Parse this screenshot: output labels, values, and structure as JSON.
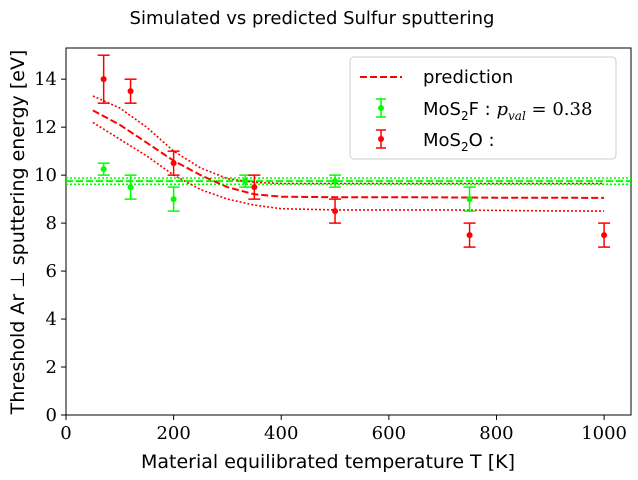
{
  "chart_data": {
    "type": "scatter",
    "title": "Simulated vs predicted Sulfur sputtering",
    "xlabel": "Material equilibrated temperature T [K]",
    "ylabel": "Threshold Ar ⊥ sputtering energy [eV]",
    "xlim": [
      0,
      1050
    ],
    "ylim": [
      0,
      15.3
    ],
    "xticks": [
      0,
      200,
      400,
      600,
      800,
      1000
    ],
    "yticks": [
      0,
      2,
      4,
      6,
      8,
      10,
      12,
      14
    ],
    "grid": false,
    "legend_position": "top-right",
    "legend": {
      "prediction": "prediction",
      "series1_main": "MoS",
      "series1_sub": "2",
      "series1_tail": "F : ",
      "series1_pval": "p",
      "series1_pval_sub": "val",
      "series1_pval_tail": " = 0.38",
      "series2_main": "MoS",
      "series2_sub": "2",
      "series2_tail": "O :"
    },
    "series": [
      {
        "name": "MoS2F",
        "color": "#00ff00",
        "points": [
          {
            "x": 70,
            "y": 10.25,
            "err": 0.25
          },
          {
            "x": 120,
            "y": 9.5,
            "err": 0.5
          },
          {
            "x": 200,
            "y": 9.0,
            "err": 0.5
          },
          {
            "x": 333,
            "y": 9.75,
            "err": 0.25
          },
          {
            "x": 500,
            "y": 9.75,
            "err": 0.25
          },
          {
            "x": 750,
            "y": 9.0,
            "err": 0.5
          }
        ],
        "fit_mean": 9.75,
        "fit_band": [
          9.62,
          9.88
        ]
      },
      {
        "name": "MoS2O",
        "color": "#ff0000",
        "points": [
          {
            "x": 70,
            "y": 14.0,
            "err": 1.0
          },
          {
            "x": 120,
            "y": 13.5,
            "err": 0.5
          },
          {
            "x": 200,
            "y": 10.5,
            "err": 0.5
          },
          {
            "x": 350,
            "y": 9.5,
            "err": 0.5
          },
          {
            "x": 500,
            "y": 8.5,
            "err": 0.5
          },
          {
            "x": 750,
            "y": 7.5,
            "err": 0.5
          },
          {
            "x": 1000,
            "y": 7.5,
            "err": 0.5
          }
        ]
      }
    ],
    "prediction": {
      "color": "#ff0000",
      "mean": [
        [
          50,
          12.7
        ],
        [
          100,
          12.1
        ],
        [
          150,
          11.35
        ],
        [
          200,
          10.6
        ],
        [
          250,
          10.0
        ],
        [
          300,
          9.5
        ],
        [
          350,
          9.2
        ],
        [
          400,
          9.1
        ],
        [
          500,
          9.08
        ],
        [
          600,
          9.08
        ],
        [
          700,
          9.07
        ],
        [
          800,
          9.06
        ],
        [
          900,
          9.06
        ],
        [
          1000,
          9.05
        ]
      ],
      "upper": [
        [
          50,
          13.3
        ],
        [
          100,
          12.8
        ],
        [
          150,
          12.0
        ],
        [
          200,
          11.0
        ],
        [
          250,
          10.3
        ],
        [
          300,
          9.85
        ],
        [
          350,
          9.7
        ],
        [
          400,
          9.65
        ],
        [
          500,
          9.65
        ],
        [
          600,
          9.65
        ],
        [
          700,
          9.65
        ],
        [
          800,
          9.65
        ],
        [
          900,
          9.65
        ],
        [
          1000,
          9.65
        ]
      ],
      "lower": [
        [
          50,
          12.2
        ],
        [
          100,
          11.5
        ],
        [
          150,
          10.8
        ],
        [
          200,
          10.0
        ],
        [
          250,
          9.4
        ],
        [
          300,
          9.0
        ],
        [
          350,
          8.75
        ],
        [
          400,
          8.6
        ],
        [
          500,
          8.55
        ],
        [
          600,
          8.55
        ],
        [
          700,
          8.55
        ],
        [
          800,
          8.53
        ],
        [
          900,
          8.51
        ],
        [
          1000,
          8.5
        ]
      ]
    }
  }
}
